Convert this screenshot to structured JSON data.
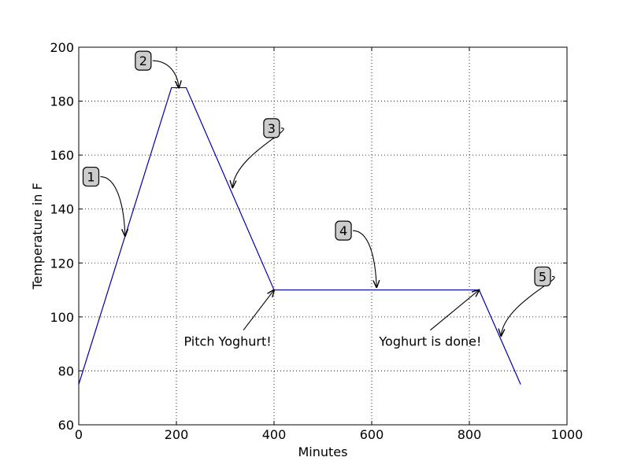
{
  "chart_data": {
    "type": "line",
    "title": "",
    "xlabel": "Minutes",
    "ylabel": "Temperature in F",
    "xlim": [
      0,
      1000
    ],
    "ylim": [
      60,
      200
    ],
    "grid": true,
    "xticks": [
      0,
      200,
      400,
      600,
      800,
      1000
    ],
    "yticks": [
      60,
      80,
      100,
      120,
      140,
      160,
      180,
      200
    ],
    "xtick_labels": [
      "0",
      "200",
      "400",
      "600",
      "800",
      "1000"
    ],
    "ytick_labels": [
      "60",
      "80",
      "100",
      "120",
      "140",
      "160",
      "180",
      "200"
    ],
    "line_color": "#0000aa",
    "series": [
      {
        "x": [
          0,
          190,
          220,
          400,
          820,
          905
        ],
        "y": [
          75,
          185,
          185,
          110,
          110,
          75
        ]
      }
    ],
    "annotations": [
      {
        "label": "1",
        "boxed": true,
        "text_at": [
          25,
          152
        ],
        "target": [
          95,
          130
        ]
      },
      {
        "label": "2",
        "boxed": true,
        "text_at": [
          132,
          195
        ],
        "target": [
          205,
          185
        ]
      },
      {
        "label": "3",
        "boxed": true,
        "text_at": [
          395,
          170
        ],
        "target": [
          315,
          148
        ]
      },
      {
        "label": "4",
        "boxed": true,
        "text_at": [
          542,
          132
        ],
        "target": [
          610,
          111
        ]
      },
      {
        "label": "5",
        "boxed": true,
        "text_at": [
          950,
          115
        ],
        "target": [
          865,
          93
        ]
      },
      {
        "label": "Pitch Yoghurt!",
        "boxed": false,
        "text_at": [
          305,
          91
        ],
        "target": [
          400,
          110
        ]
      },
      {
        "label": "Yoghurt is done!",
        "boxed": false,
        "text_at": [
          720,
          91
        ],
        "target": [
          820,
          110
        ]
      }
    ]
  }
}
